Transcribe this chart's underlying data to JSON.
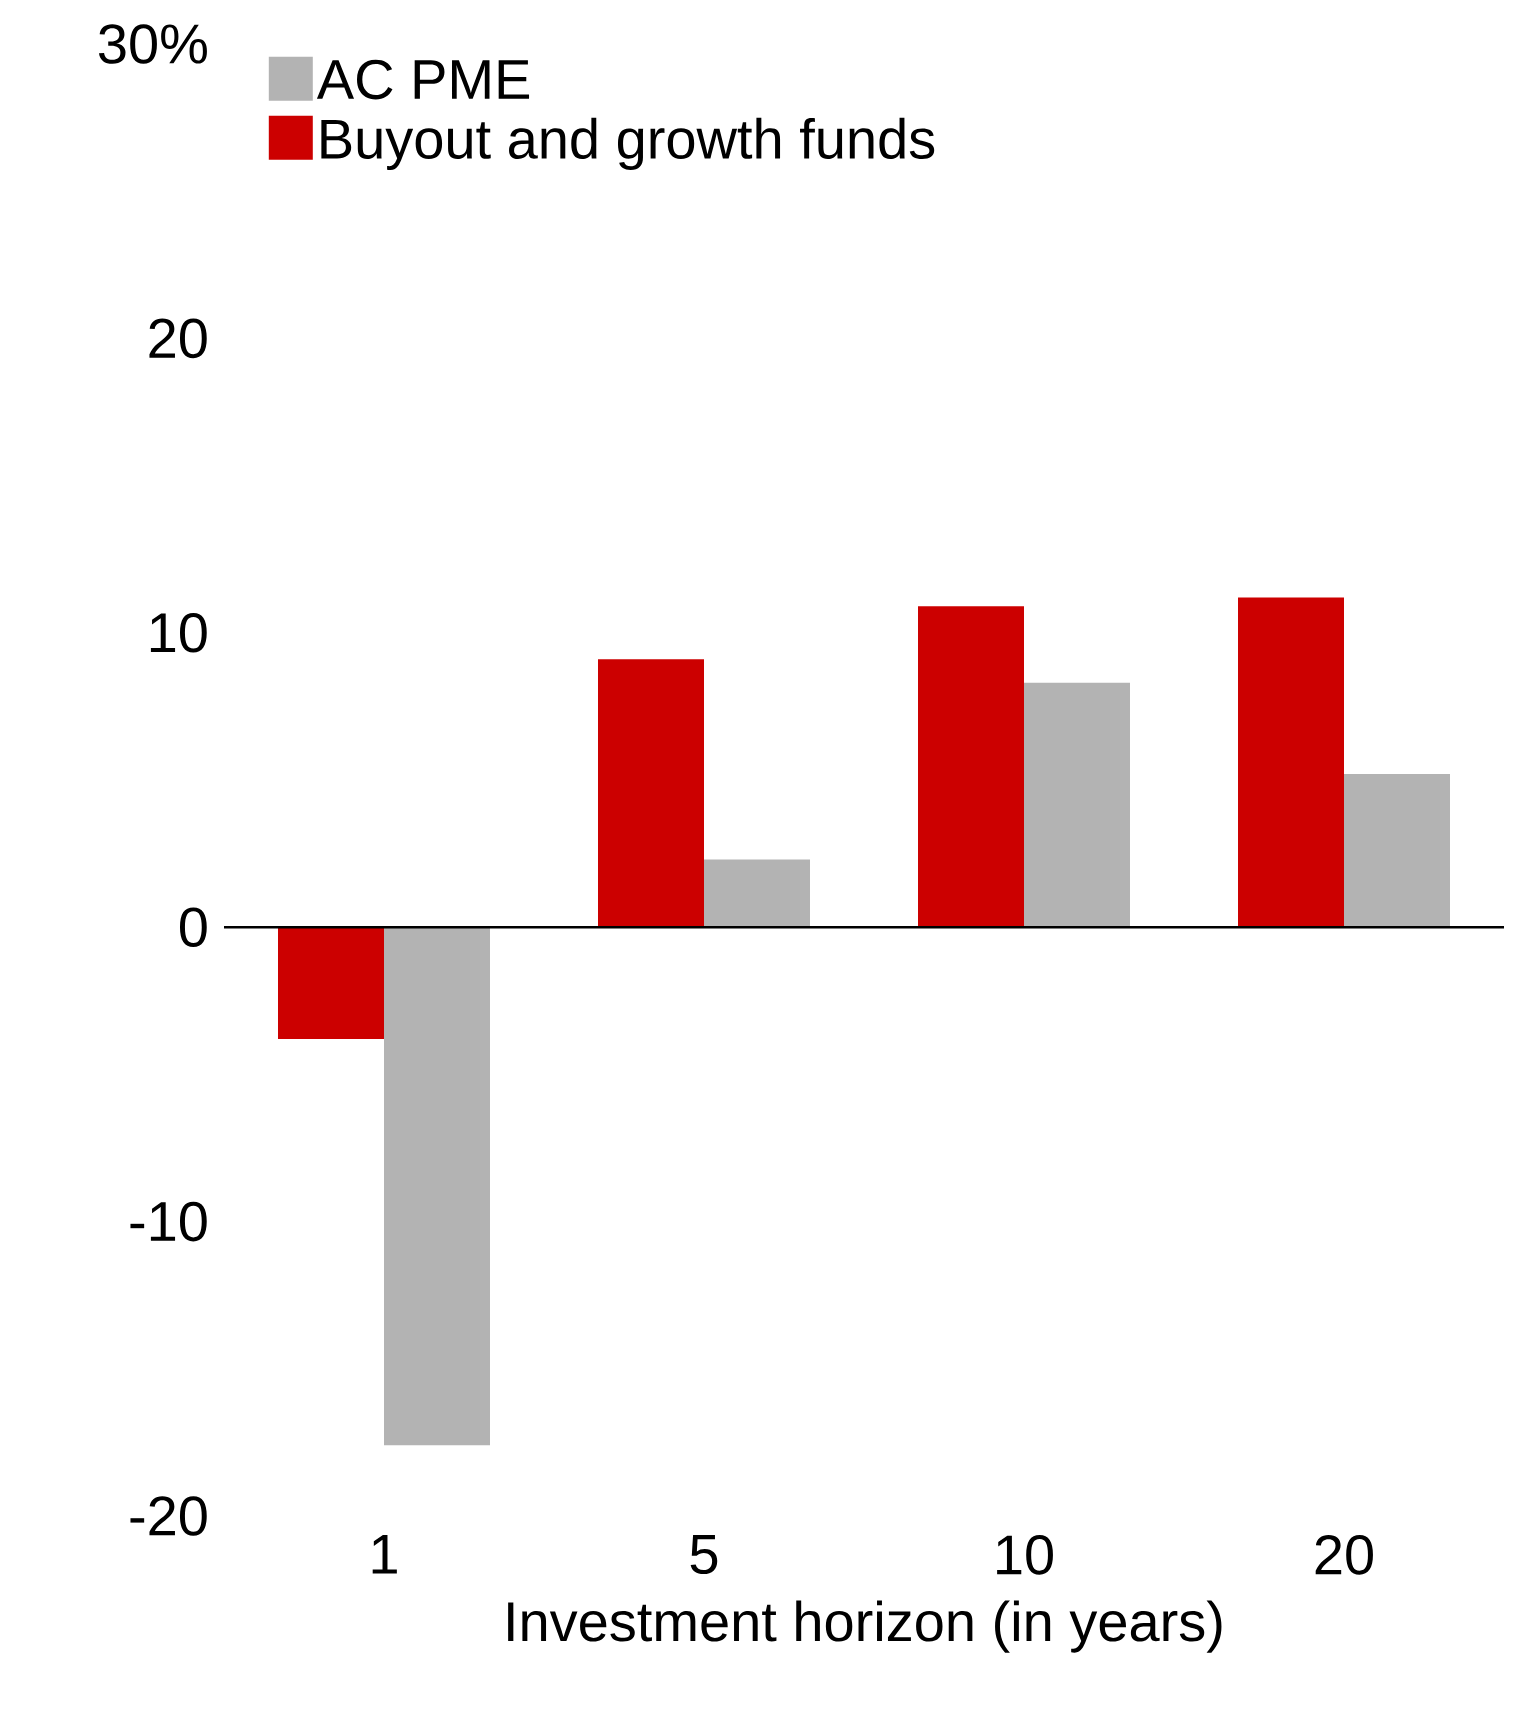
{
  "chart_data": {
    "type": "bar",
    "xlabel": "Investment horizon (in years)",
    "categories": [
      "1",
      "5",
      "10",
      "20"
    ],
    "series": [
      {
        "name": "Buyout and growth funds",
        "color": "#cc0000",
        "values": [
          -3.8,
          9.1,
          10.9,
          11.2
        ]
      },
      {
        "name": "AC PME",
        "color": "#b3b3b3",
        "values": [
          -17.6,
          2.3,
          8.3,
          5.2
        ]
      }
    ],
    "ylim": [
      -20,
      30
    ],
    "yticks": [
      -20,
      -10,
      0,
      10,
      20,
      {
        "value": 30,
        "label": "30%"
      }
    ],
    "ref_lines": [
      {
        "axis": "y",
        "value": 0,
        "color": "#000000"
      }
    ],
    "legend": "top left",
    "grid": false
  }
}
